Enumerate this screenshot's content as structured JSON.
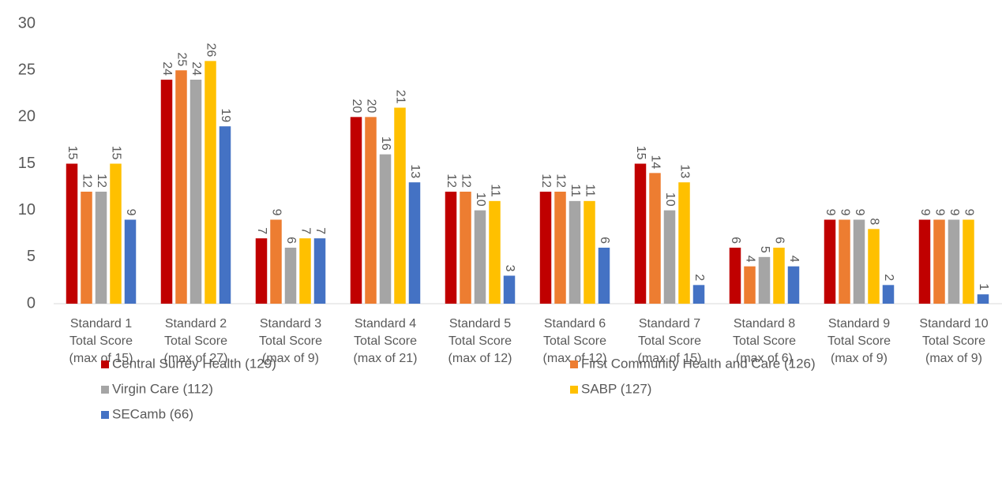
{
  "chart_data": {
    "type": "bar",
    "categories": [
      [
        "Standard 1",
        "Total Score",
        "(max of 15)"
      ],
      [
        "Standard 2",
        "Total Score",
        "(max of 27)"
      ],
      [
        "Standard 3",
        "Total Score",
        "(max of 9)"
      ],
      [
        "Standard 4",
        "Total Score",
        "(max of 21)"
      ],
      [
        "Standard 5",
        "Total Score",
        "(max of 12)"
      ],
      [
        "Standard 6",
        "Total Score",
        "(max of 12)"
      ],
      [
        "Standard 7",
        "Total Score",
        "(max of 15)"
      ],
      [
        "Standard 8",
        "Total Score",
        "(max of 6)"
      ],
      [
        "Standard 9",
        "Total Score",
        "(max of 9)"
      ],
      [
        "Standard 10",
        "Total Score",
        "(max of 9)"
      ]
    ],
    "series": [
      {
        "name": "Central Surrey Health (129)",
        "color": "#c00000",
        "values": [
          15,
          24,
          7,
          20,
          12,
          12,
          15,
          6,
          9,
          9
        ]
      },
      {
        "name": "First Community Health and Care (126)",
        "color": "#ed7d31",
        "values": [
          12,
          25,
          9,
          20,
          12,
          12,
          14,
          4,
          9,
          9
        ]
      },
      {
        "name": "Virgin Care (112)",
        "color": "#a5a5a5",
        "values": [
          12,
          24,
          6,
          16,
          10,
          11,
          10,
          5,
          9,
          9
        ]
      },
      {
        "name": "SABP (127)",
        "color": "#ffc000",
        "values": [
          15,
          26,
          7,
          21,
          11,
          11,
          13,
          6,
          8,
          9
        ]
      },
      {
        "name": "SECamb (66)",
        "color": "#4472c4",
        "values": [
          9,
          19,
          7,
          13,
          3,
          6,
          2,
          4,
          2,
          1
        ]
      }
    ],
    "ylim": [
      0,
      30
    ],
    "yticks": [
      0,
      5,
      10,
      15,
      20,
      25,
      30
    ],
    "grid": false,
    "legend": "bottom"
  }
}
